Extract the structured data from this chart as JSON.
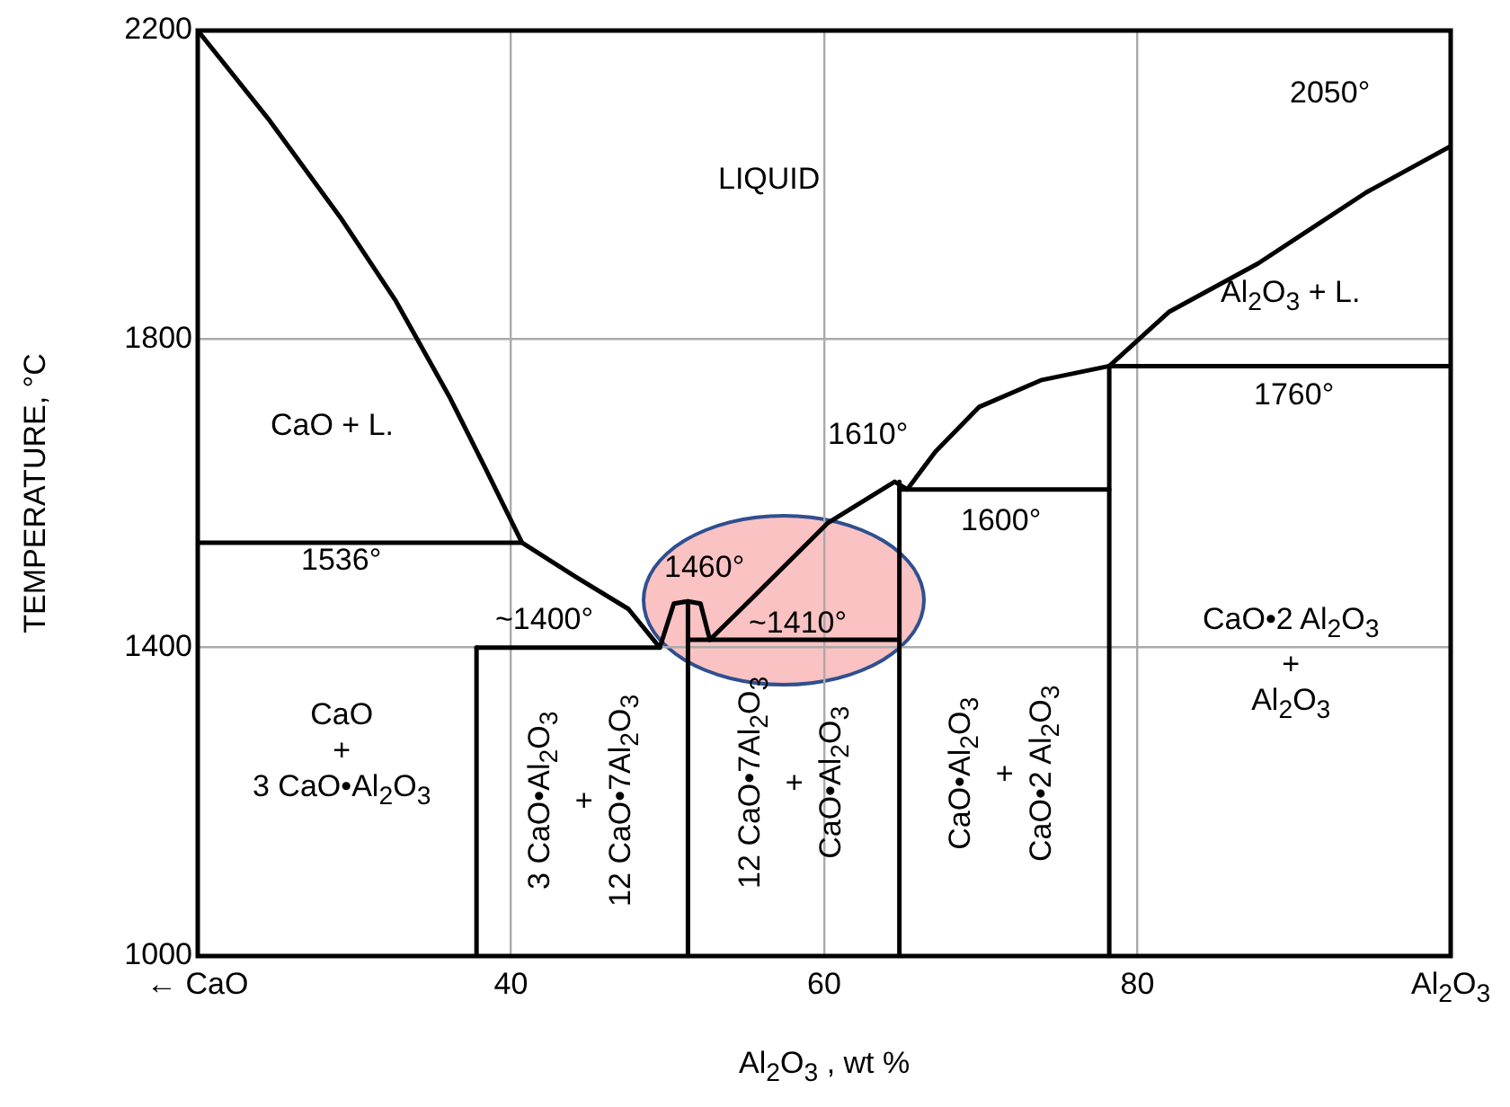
{
  "chart_data": {
    "type": "line",
    "xlabel": "Al$_{2}$O$_{3}$ , wt %",
    "ylabel": "TEMPERATURE, °C",
    "xlim": [
      20,
      100
    ],
    "xticks": [
      {
        "value": 20,
        "label": "← CaO"
      },
      40,
      60,
      80,
      {
        "value": 100,
        "label": "Al$_{2}$O$_{3}$"
      }
    ],
    "ylim": [
      1000,
      2200
    ],
    "yticks": [
      1000,
      1400,
      1800,
      2200
    ],
    "grid": true,
    "legend": false,
    "marker": "none",
    "line_style": "solid",
    "series": [
      {
        "color": "#000000",
        "x": [
          20,
          24.6,
          29.2,
          32.6,
          36.1,
          38.4,
          40.7,
          44.1,
          47.5,
          49.5,
          50.4,
          51.3,
          52.1,
          52.7,
          55.6,
          60.2,
          64.5,
          65.3,
          67.1,
          69.9,
          73.9,
          78.2,
          82,
          87.7,
          94.6,
          100
        ],
        "values": [
          2200,
          2083,
          1955,
          1851,
          1724,
          1631,
          1536,
          1492,
          1450,
          1400,
          1457,
          1460,
          1457,
          1410,
          1468,
          1561,
          1615,
          1605,
          1654,
          1712,
          1747,
          1765,
          1835,
          1898,
          1990,
          2050
        ]
      },
      {
        "color": "#000000",
        "x": [
          20,
          40.7
        ],
        "values": [
          1536,
          1536
        ]
      },
      {
        "color": "#000000",
        "x": [
          37.8,
          49.5
        ],
        "values": [
          1400,
          1400
        ]
      },
      {
        "color": "#000000",
        "x": [
          51.3,
          64.8
        ],
        "values": [
          1410,
          1410
        ]
      },
      {
        "color": "#000000",
        "x": [
          64.8,
          78.2
        ],
        "values": [
          1605,
          1605
        ]
      },
      {
        "color": "#000000",
        "x": [
          78.2,
          100
        ],
        "values": [
          1765,
          1765
        ]
      },
      {
        "color": "#000000",
        "x": [
          37.8,
          37.8
        ],
        "values": [
          1000,
          1400
        ]
      },
      {
        "color": "#000000",
        "x": [
          51.3,
          51.3
        ],
        "values": [
          1000,
          1460
        ]
      },
      {
        "color": "#000000",
        "x": [
          64.8,
          64.8
        ],
        "values": [
          1000,
          1615
        ]
      },
      {
        "color": "#000000",
        "x": [
          78.2,
          78.2
        ],
        "values": [
          1000,
          1765
        ]
      }
    ],
    "annotations": [
      "2050°",
      "LIQUID",
      "Al$_{2}$O$_{3}$ + L.",
      "CaO + L.",
      "1536°",
      "1610°",
      "1760°",
      "1600°",
      "1460°",
      "~1400°",
      "~1410°",
      "CaO\n+\n3 CaO•Al$_{2}$O$_{3}$",
      "3 CaO•Al$_{2}$O$_{3}$\n+\n12 CaO•7Al$_{2}$O$_{3}$",
      "12 CaO•7Al$_{2}$O$_{3}$\n+\nCaO•Al$_{2}$O$_{3}$",
      "CaO•Al$_{2}$O$_{3}$\n+\nCaO•2 Al$_{2}$O$_{3}$",
      "CaO•2 Al$_{2}$O$_{3}$\n+\nAl$_{2}$O$_{3}$"
    ]
  }
}
